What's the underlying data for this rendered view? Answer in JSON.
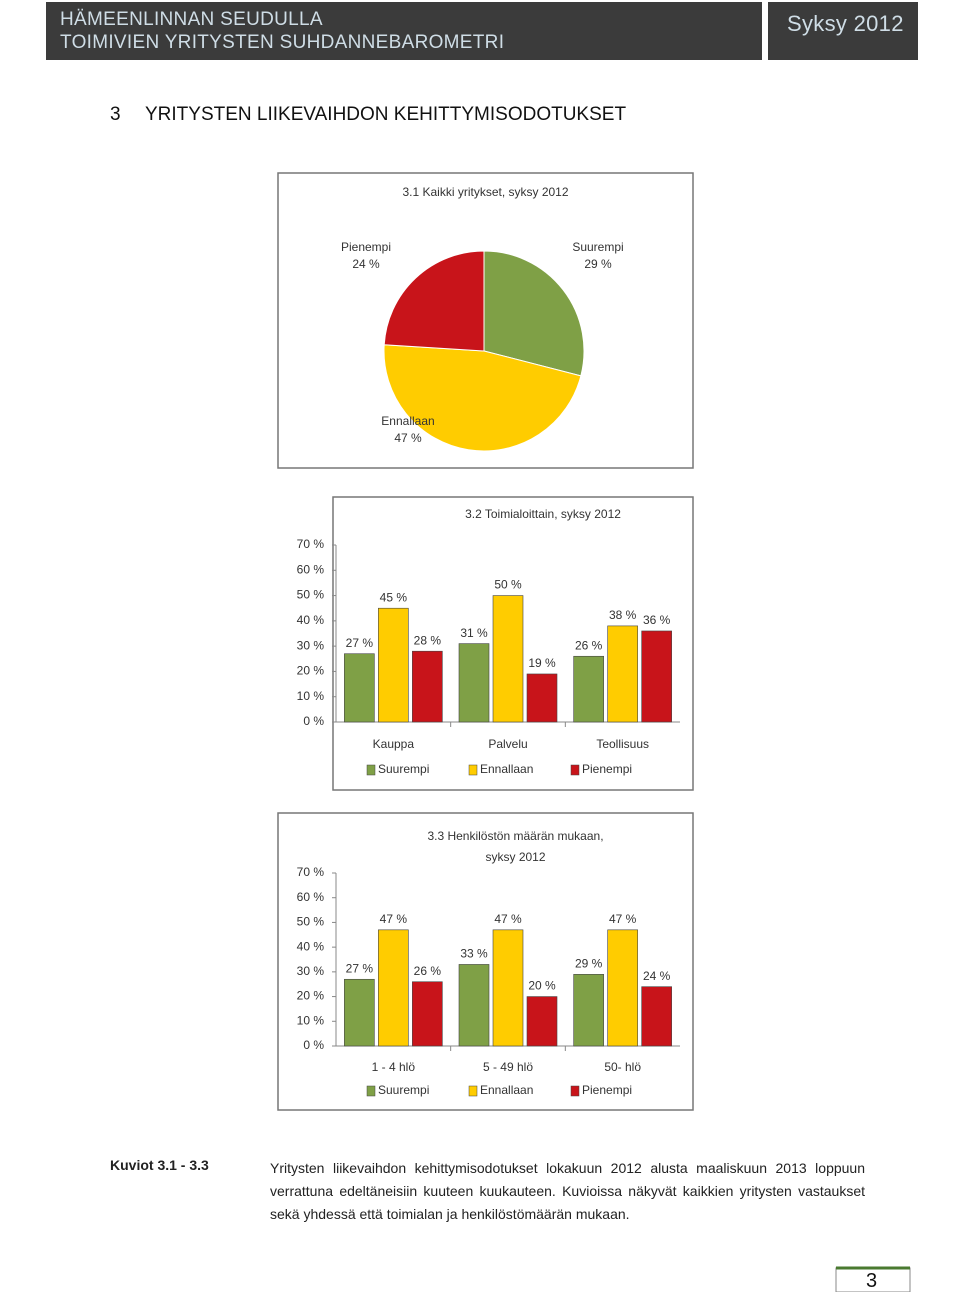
{
  "header": {
    "title_lines": [
      "HÄMEENLINNAN SEUDULLA",
      "TOIMIVIEN YRITYSTEN SUHDANNEBAROMETRI"
    ],
    "season": "Syksy 2012"
  },
  "section": {
    "number": "3",
    "title": "YRITYSTEN LIIKEVAIHDON KEHITTYMISODOTUKSET"
  },
  "chart_data": [
    {
      "type": "pie",
      "title": "3.1 Kaikki yritykset, syksy 2012",
      "categories": [
        "Suurempi",
        "Ennallaan",
        "Pienempi"
      ],
      "values": [
        29,
        47,
        24
      ],
      "value_labels": [
        "29 %",
        "47 %",
        "24 %"
      ],
      "colors": [
        "#7fa046",
        "#ffcc00",
        "#c8141a"
      ]
    },
    {
      "type": "bar",
      "title": "3.2 Toimialoittain, syksy 2012",
      "categories": [
        "Kauppa",
        "Palvelu",
        "Teollisuus"
      ],
      "series": [
        {
          "name": "Suurempi",
          "color": "#7fa046",
          "values": [
            27,
            31,
            26
          ],
          "value_labels": [
            "27 %",
            "31 %",
            "26 %"
          ]
        },
        {
          "name": "Ennallaan",
          "color": "#ffcc00",
          "values": [
            45,
            50,
            38
          ],
          "value_labels": [
            "45 %",
            "50 %",
            "38 %"
          ]
        },
        {
          "name": "Pienempi",
          "color": "#c8141a",
          "values": [
            28,
            19,
            36
          ],
          "value_labels": [
            "28 %",
            "19 %",
            "36 %"
          ]
        }
      ],
      "ylim": [
        0,
        70
      ],
      "yticks": [
        {
          "value": 0,
          "label": "0 %"
        },
        {
          "value": 10,
          "label": "10 %"
        },
        {
          "value": 20,
          "label": "20 %"
        },
        {
          "value": 30,
          "label": "30 %"
        },
        {
          "value": 40,
          "label": "40 %"
        },
        {
          "value": 50,
          "label": "50 %"
        },
        {
          "value": 60,
          "label": "60 %"
        },
        {
          "value": 70,
          "label": "70 %"
        }
      ],
      "legend": "bottom"
    },
    {
      "type": "bar",
      "title": [
        "3.3 Henkilöstön määrän mukaan,",
        "syksy 2012"
      ],
      "categories": [
        "1 - 4 hlö",
        "5 - 49 hlö",
        "50- hlö"
      ],
      "series": [
        {
          "name": "Suurempi",
          "color": "#7fa046",
          "values": [
            27,
            33,
            29
          ],
          "value_labels": [
            "27 %",
            "33 %",
            "29 %"
          ]
        },
        {
          "name": "Ennallaan",
          "color": "#ffcc00",
          "values": [
            47,
            47,
            47
          ],
          "value_labels": [
            "47 %",
            "47 %",
            "47 %"
          ]
        },
        {
          "name": "Pienempi",
          "color": "#c8141a",
          "values": [
            26,
            20,
            24
          ],
          "value_labels": [
            "26 %",
            "20 %",
            "24 %"
          ]
        }
      ],
      "ylim": [
        0,
        70
      ],
      "yticks": [
        {
          "value": 0,
          "label": "0 %"
        },
        {
          "value": 10,
          "label": "10 %"
        },
        {
          "value": 20,
          "label": "20 %"
        },
        {
          "value": 30,
          "label": "30 %"
        },
        {
          "value": 40,
          "label": "40 %"
        },
        {
          "value": 50,
          "label": "50 %"
        },
        {
          "value": 60,
          "label": "60 %"
        },
        {
          "value": 70,
          "label": "70 %"
        }
      ],
      "legend": "bottom"
    }
  ],
  "caption": {
    "label": "Kuviot 3.1 - 3.3",
    "text": "Yritysten liikevaihdon kehittymisodotukset lokakuun 2012 alusta maaliskuun 2013 loppuun verrattuna edeltäneisiin kuuteen kuukauteen. Kuvioissa näkyvät kaikkien yritysten vastaukset sekä yhdessä että toimialan ja henkilöstömäärän mukaan."
  },
  "page_number": "3"
}
